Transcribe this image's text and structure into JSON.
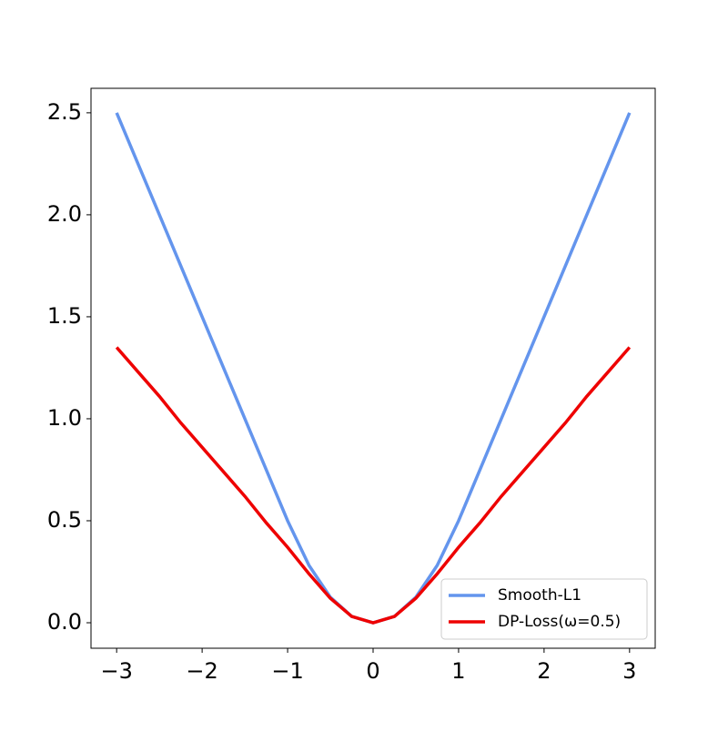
{
  "chart_data": {
    "type": "line",
    "x": [
      -3,
      -2.75,
      -2.5,
      -2.25,
      -2,
      -1.75,
      -1.5,
      -1.25,
      -1,
      -0.75,
      -0.5,
      -0.25,
      0,
      0.25,
      0.5,
      0.75,
      1,
      1.25,
      1.5,
      1.75,
      2,
      2.25,
      2.5,
      2.75,
      3
    ],
    "series": [
      {
        "name": "Smooth-L1",
        "color": "#6495ed",
        "values": [
          2.5,
          2.25,
          2,
          1.75,
          1.5,
          1.25,
          1,
          0.75,
          0.5,
          0.281,
          0.125,
          0.031,
          0,
          0.031,
          0.125,
          0.281,
          0.5,
          0.75,
          1,
          1.25,
          1.5,
          1.75,
          2,
          2.25,
          2.5
        ]
      },
      {
        "name": "DP-Loss(ω=0.5)",
        "color": "#ee0000",
        "values": [
          1.35,
          1.23,
          1.11,
          0.98,
          0.86,
          0.74,
          0.62,
          0.49,
          0.37,
          0.24,
          0.12,
          0.031,
          0,
          0.031,
          0.12,
          0.24,
          0.37,
          0.49,
          0.62,
          0.74,
          0.86,
          0.98,
          1.11,
          1.23,
          1.35
        ]
      }
    ],
    "xlim": [
      -3.3,
      3.3
    ],
    "ylim": [
      -0.125,
      2.62
    ],
    "xticks": [
      {
        "value": -3,
        "label": "−3"
      },
      {
        "value": -2,
        "label": "−2"
      },
      {
        "value": -1,
        "label": "−1"
      },
      0,
      1,
      2,
      3
    ],
    "yticks": [
      {
        "value": 0,
        "label": "0.0"
      },
      0.5,
      {
        "value": 1,
        "label": "1.0"
      },
      1.5,
      {
        "value": 2,
        "label": "2.0"
      },
      2.5
    ],
    "legend": "lower right"
  }
}
